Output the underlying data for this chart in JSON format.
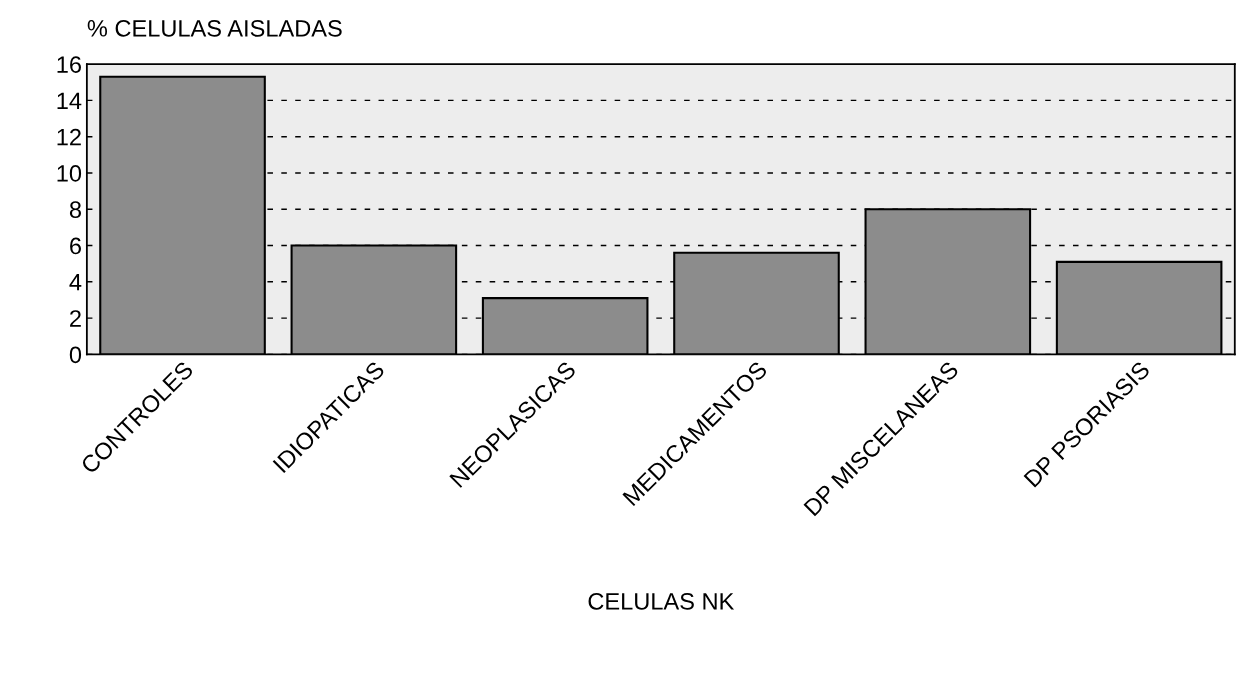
{
  "chart_data": {
    "type": "bar",
    "ylabel": "% CELULAS AISLADAS",
    "xlabel": "CELULAS NK",
    "categories": [
      "CONTROLES",
      "IDIOPATICAS",
      "NEOPLASICAS",
      "MEDICAMENTOS",
      "DP MISCELANEAS",
      "DP PSORIASIS"
    ],
    "values": [
      15.3,
      6.0,
      3.1,
      5.6,
      8.0,
      5.1
    ],
    "color": "#8c8c8c",
    "ylim": [
      0,
      16
    ],
    "yticks": [
      0,
      2,
      4,
      6,
      8,
      10,
      12,
      14,
      16
    ],
    "grid": "y",
    "line_style": "dashed"
  }
}
